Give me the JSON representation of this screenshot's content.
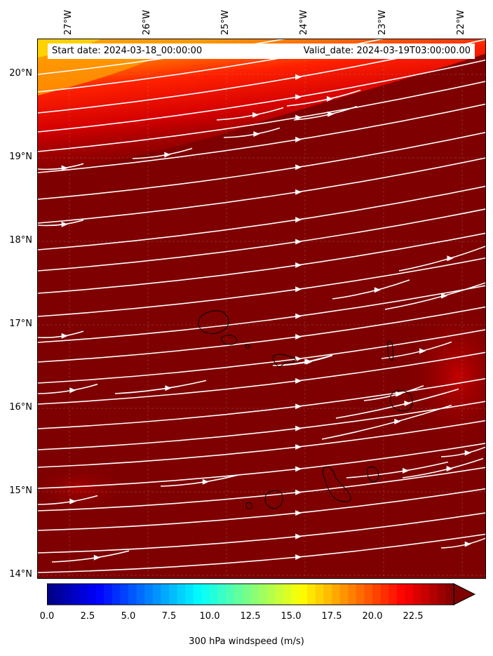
{
  "start_date": "Start date: 2024-03-18_00:00:00",
  "valid_date": "Valid_date: 2024-03-19T03:00:00.00",
  "lon_labels": [
    "27°W",
    "26°W",
    "25°W",
    "24°W",
    "23°W",
    "22°W"
  ],
  "lat_labels": [
    "20°N",
    "19°N",
    "18°N",
    "17°N",
    "16°N",
    "15°N",
    "14°N"
  ],
  "colorbar": {
    "label": "300 hPa windspeed (m/s)",
    "ticks": [
      "0.0",
      "2.5",
      "5.0",
      "7.5",
      "10.0",
      "12.5",
      "15.0",
      "17.5",
      "20.0",
      "22.5"
    ],
    "min": 0,
    "max": 25,
    "extend": "max",
    "colormap": "jet"
  },
  "colors": {
    "background_field": "#7f0000",
    "streamlines": "#ffffff",
    "coastline": "#000000"
  }
}
